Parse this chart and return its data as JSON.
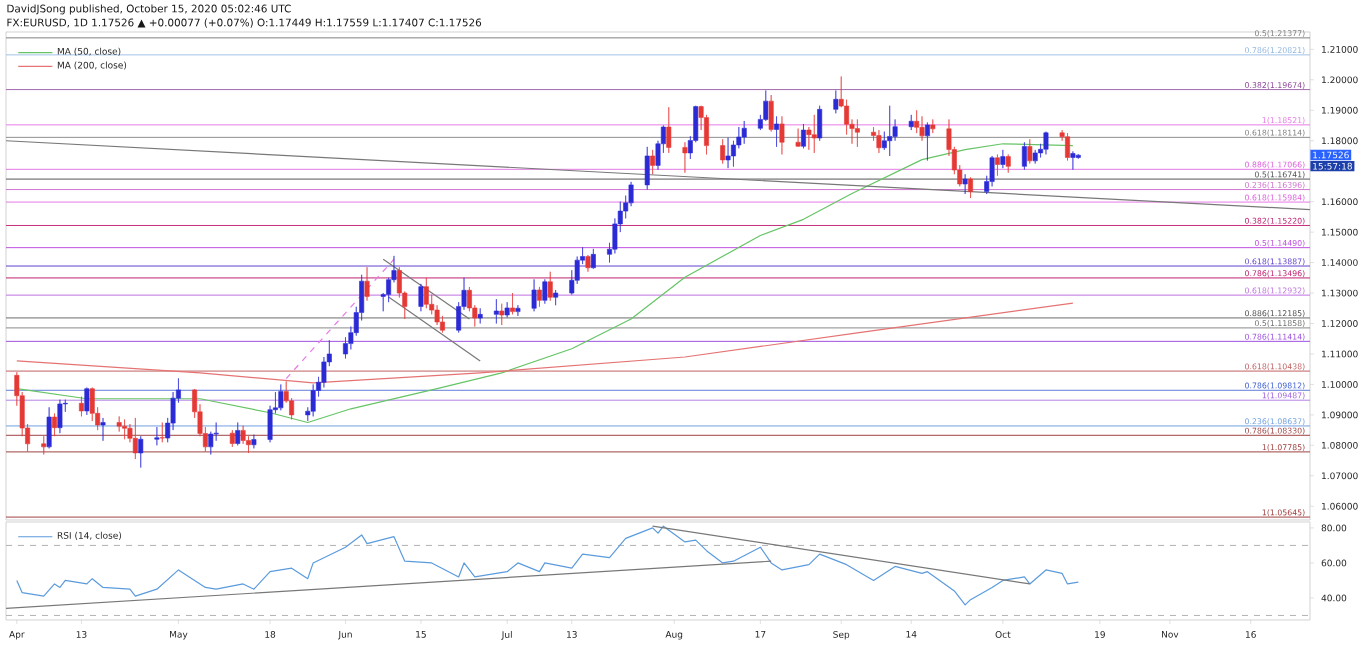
{
  "chart_data": [
    {
      "type": "candlestick",
      "title": "DavidJSong published, October 15, 2020 05:02:46 UTC",
      "subtitle": "FX:EURUSD, 1D 1.17526 ▲ +0.00077 (+0.07%) O:1.17449 H:1.17559 L:1.17407 C:1.17526",
      "x": [
        "2020-04-01",
        "2020-04-02",
        "2020-04-03",
        "2020-04-06",
        "2020-04-07",
        "2020-04-08",
        "2020-04-09",
        "2020-04-10",
        "2020-04-13",
        "2020-04-14",
        "2020-04-15",
        "2020-04-16",
        "2020-04-17",
        "2020-04-20",
        "2020-04-21",
        "2020-04-22",
        "2020-04-23",
        "2020-04-24",
        "2020-04-27",
        "2020-04-28",
        "2020-04-29",
        "2020-04-30",
        "2020-05-01",
        "2020-05-04",
        "2020-05-05",
        "2020-05-06",
        "2020-05-07",
        "2020-05-08",
        "2020-05-11",
        "2020-05-12",
        "2020-05-13",
        "2020-05-14",
        "2020-05-15",
        "2020-05-18",
        "2020-05-19",
        "2020-05-20",
        "2020-05-21",
        "2020-05-22",
        "2020-05-25",
        "2020-05-26",
        "2020-05-27",
        "2020-05-28",
        "2020-05-29",
        "2020-06-01",
        "2020-06-02",
        "2020-06-03",
        "2020-06-04",
        "2020-06-05",
        "2020-06-08",
        "2020-06-09",
        "2020-06-10",
        "2020-06-11",
        "2020-06-12",
        "2020-06-15",
        "2020-06-16",
        "2020-06-17",
        "2020-06-18",
        "2020-06-19",
        "2020-06-22",
        "2020-06-23",
        "2020-06-24",
        "2020-06-25",
        "2020-06-26",
        "2020-06-29",
        "2020-06-30",
        "2020-07-01",
        "2020-07-02",
        "2020-07-03",
        "2020-07-06",
        "2020-07-07",
        "2020-07-08",
        "2020-07-09",
        "2020-07-10",
        "2020-07-13",
        "2020-07-14",
        "2020-07-15",
        "2020-07-16",
        "2020-07-17",
        "2020-07-20",
        "2020-07-21",
        "2020-07-22",
        "2020-07-23",
        "2020-07-24",
        "2020-07-27",
        "2020-07-28",
        "2020-07-29",
        "2020-07-30",
        "2020-07-31",
        "2020-08-03",
        "2020-08-04",
        "2020-08-05",
        "2020-08-06",
        "2020-08-07",
        "2020-08-10",
        "2020-08-11",
        "2020-08-12",
        "2020-08-13",
        "2020-08-14",
        "2020-08-17",
        "2020-08-18",
        "2020-08-19",
        "2020-08-20",
        "2020-08-21",
        "2020-08-24",
        "2020-08-25",
        "2020-08-26",
        "2020-08-27",
        "2020-08-28",
        "2020-08-31",
        "2020-09-01",
        "2020-09-02",
        "2020-09-03",
        "2020-09-04",
        "2020-09-07",
        "2020-09-08",
        "2020-09-09",
        "2020-09-10",
        "2020-09-11",
        "2020-09-14",
        "2020-09-15",
        "2020-09-16",
        "2020-09-17",
        "2020-09-18",
        "2020-09-21",
        "2020-09-22",
        "2020-09-23",
        "2020-09-24",
        "2020-09-25",
        "2020-09-28",
        "2020-09-29",
        "2020-09-30",
        "2020-10-01",
        "2020-10-02",
        "2020-10-05",
        "2020-10-06",
        "2020-10-07",
        "2020-10-08",
        "2020-10-09",
        "2020-10-12",
        "2020-10-13",
        "2020-10-14",
        "2020-10-15"
      ],
      "ohlc": [
        [
          1.103,
          1.104,
          1.093,
          1.0963
        ],
        [
          1.0963,
          1.0975,
          1.083,
          1.0857
        ],
        [
          1.0857,
          1.087,
          1.078,
          1.0805
        ],
        [
          1.0805,
          1.083,
          1.077,
          1.0795
        ],
        [
          1.0795,
          1.0925,
          1.079,
          1.0893
        ],
        [
          1.0893,
          1.0905,
          1.083,
          1.0858
        ],
        [
          1.0858,
          1.095,
          1.084,
          1.0936
        ],
        [
          1.0936,
          1.095,
          1.091,
          1.0938
        ],
        [
          1.0938,
          1.096,
          1.0895,
          1.0913
        ],
        [
          1.0913,
          1.099,
          1.09,
          1.0986
        ],
        [
          1.0986,
          1.099,
          1.088,
          1.0905
        ],
        [
          1.0905,
          1.0925,
          1.085,
          1.0867
        ],
        [
          1.0867,
          1.089,
          1.0815,
          1.0875
        ],
        [
          1.0875,
          1.0895,
          1.0845,
          1.0863
        ],
        [
          1.0863,
          1.0885,
          1.082,
          1.0856
        ],
        [
          1.0856,
          1.087,
          1.081,
          1.0823
        ],
        [
          1.0823,
          1.089,
          1.0755,
          1.0775
        ],
        [
          1.0775,
          1.083,
          1.0727,
          1.082
        ],
        [
          1.082,
          1.086,
          1.08,
          1.0825
        ],
        [
          1.0825,
          1.0875,
          1.081,
          1.0824
        ],
        [
          1.0824,
          1.089,
          1.081,
          1.0873
        ],
        [
          1.0873,
          1.0975,
          1.085,
          1.0955
        ],
        [
          1.0955,
          1.102,
          1.094,
          1.0982
        ],
        [
          1.0982,
          1.0985,
          1.089,
          1.091
        ],
        [
          1.091,
          1.0935,
          1.083,
          1.0839
        ],
        [
          1.0839,
          1.086,
          1.078,
          1.0795
        ],
        [
          1.0795,
          1.0845,
          1.077,
          1.0837
        ],
        [
          1.0837,
          1.0875,
          1.0815,
          1.084
        ],
        [
          1.084,
          1.085,
          1.0795,
          1.0806
        ],
        [
          1.0806,
          1.0875,
          1.08,
          1.0849
        ],
        [
          1.0849,
          1.0865,
          1.0805,
          1.0816
        ],
        [
          1.0816,
          1.083,
          1.0775,
          1.0802
        ],
        [
          1.0802,
          1.0835,
          1.079,
          1.0819
        ],
        [
          1.0819,
          1.093,
          1.081,
          1.0917
        ],
        [
          1.0917,
          1.0975,
          1.0905,
          1.0923
        ],
        [
          1.0923,
          1.1,
          1.0915,
          1.0977
        ],
        [
          1.0977,
          1.101,
          1.094,
          1.0946
        ],
        [
          1.0946,
          1.0955,
          1.0885,
          1.09
        ],
        [
          1.09,
          1.0925,
          1.088,
          1.0912
        ],
        [
          1.0912,
          1.1,
          1.0895,
          1.098
        ],
        [
          1.098,
          1.1025,
          1.096,
          1.1007
        ],
        [
          1.1007,
          1.109,
          1.099,
          1.1074
        ],
        [
          1.1074,
          1.1145,
          1.106,
          1.11
        ],
        [
          1.11,
          1.1155,
          1.1085,
          1.1134
        ],
        [
          1.1134,
          1.119,
          1.1115,
          1.117
        ],
        [
          1.117,
          1.1255,
          1.116,
          1.1236
        ],
        [
          1.1236,
          1.136,
          1.121,
          1.1339
        ],
        [
          1.1339,
          1.1385,
          1.1275,
          1.1289
        ],
        [
          1.1289,
          1.13,
          1.124,
          1.1295
        ],
        [
          1.1295,
          1.135,
          1.127,
          1.1344
        ],
        [
          1.1344,
          1.1422,
          1.1335,
          1.1374
        ],
        [
          1.1374,
          1.1385,
          1.1285,
          1.13
        ],
        [
          1.13,
          1.1305,
          1.1215,
          1.1256
        ],
        [
          1.1256,
          1.133,
          1.124,
          1.1321
        ],
        [
          1.1321,
          1.135,
          1.125,
          1.1263
        ],
        [
          1.1263,
          1.1295,
          1.123,
          1.1244
        ],
        [
          1.1244,
          1.126,
          1.1195,
          1.1205
        ],
        [
          1.1205,
          1.1225,
          1.117,
          1.1178
        ],
        [
          1.1178,
          1.127,
          1.117,
          1.1256
        ],
        [
          1.1256,
          1.135,
          1.1245,
          1.1309
        ],
        [
          1.1309,
          1.132,
          1.124,
          1.1251
        ],
        [
          1.1251,
          1.126,
          1.119,
          1.1218
        ],
        [
          1.1218,
          1.125,
          1.12,
          1.123
        ],
        [
          1.123,
          1.128,
          1.12,
          1.1241
        ],
        [
          1.1241,
          1.1265,
          1.1195,
          1.1228
        ],
        [
          1.1228,
          1.127,
          1.122,
          1.1251
        ],
        [
          1.1251,
          1.13,
          1.123,
          1.1239
        ],
        [
          1.1239,
          1.126,
          1.1225,
          1.125
        ],
        [
          1.125,
          1.1345,
          1.124,
          1.131
        ],
        [
          1.131,
          1.132,
          1.1255,
          1.1276
        ],
        [
          1.1276,
          1.1345,
          1.1265,
          1.1337
        ],
        [
          1.1337,
          1.137,
          1.1275,
          1.1286
        ],
        [
          1.1286,
          1.131,
          1.126,
          1.13
        ],
        [
          1.13,
          1.1375,
          1.1295,
          1.1342
        ],
        [
          1.1342,
          1.142,
          1.133,
          1.1408
        ],
        [
          1.1408,
          1.145,
          1.1395,
          1.142
        ],
        [
          1.142,
          1.1425,
          1.137,
          1.1383
        ],
        [
          1.1383,
          1.1445,
          1.138,
          1.1427
        ],
        [
          1.1427,
          1.1465,
          1.14,
          1.1444
        ],
        [
          1.1444,
          1.1545,
          1.143,
          1.1527
        ],
        [
          1.1527,
          1.16,
          1.15,
          1.1569
        ],
        [
          1.1569,
          1.162,
          1.1545,
          1.1596
        ],
        [
          1.1596,
          1.1665,
          1.1585,
          1.1655
        ],
        [
          1.1655,
          1.178,
          1.164,
          1.175
        ],
        [
          1.175,
          1.177,
          1.169,
          1.1719
        ],
        [
          1.1719,
          1.18,
          1.1705,
          1.179
        ],
        [
          1.179,
          1.185,
          1.176,
          1.1845
        ],
        [
          1.1845,
          1.191,
          1.176,
          1.1778
        ],
        [
          1.1778,
          1.1795,
          1.1695,
          1.176
        ],
        [
          1.176,
          1.1815,
          1.174,
          1.1801
        ],
        [
          1.1801,
          1.1915,
          1.1795,
          1.1912
        ],
        [
          1.1912,
          1.1915,
          1.1835,
          1.1876
        ],
        [
          1.1876,
          1.1885,
          1.1755,
          1.1784
        ],
        [
          1.1784,
          1.1805,
          1.1725,
          1.1737
        ],
        [
          1.1737,
          1.181,
          1.171,
          1.175
        ],
        [
          1.175,
          1.18,
          1.1715,
          1.1786
        ],
        [
          1.1786,
          1.1845,
          1.1775,
          1.1812
        ],
        [
          1.1812,
          1.1865,
          1.179,
          1.1841
        ],
        [
          1.1841,
          1.1885,
          1.1835,
          1.187
        ],
        [
          1.187,
          1.1965,
          1.1865,
          1.193
        ],
        [
          1.193,
          1.195,
          1.183,
          1.1837
        ],
        [
          1.1837,
          1.188,
          1.178,
          1.1855
        ],
        [
          1.1855,
          1.188,
          1.1755,
          1.1795
        ],
        [
          1.1795,
          1.184,
          1.178,
          1.1782
        ],
        [
          1.1782,
          1.1855,
          1.1775,
          1.1835
        ],
        [
          1.1835,
          1.1845,
          1.177,
          1.182
        ],
        [
          1.182,
          1.1885,
          1.176,
          1.1809
        ],
        [
          1.1809,
          1.1915,
          1.18,
          1.1903
        ],
        [
          1.1903,
          1.1965,
          1.189,
          1.1936
        ],
        [
          1.1936,
          1.2011,
          1.191,
          1.1914
        ],
        [
          1.1914,
          1.1935,
          1.182,
          1.1854
        ],
        [
          1.1854,
          1.187,
          1.179,
          1.184
        ],
        [
          1.184,
          1.187,
          1.178,
          1.1828
        ],
        [
          1.1828,
          1.1845,
          1.18,
          1.1817
        ],
        [
          1.1817,
          1.1835,
          1.176,
          1.1777
        ],
        [
          1.1777,
          1.183,
          1.177,
          1.18
        ],
        [
          1.18,
          1.1915,
          1.175,
          1.1814
        ],
        [
          1.1814,
          1.187,
          1.18,
          1.1846
        ],
        [
          1.1846,
          1.1885,
          1.1835,
          1.1864
        ],
        [
          1.1864,
          1.19,
          1.1825,
          1.1844
        ],
        [
          1.1844,
          1.188,
          1.18,
          1.1816
        ],
        [
          1.1816,
          1.186,
          1.1735,
          1.1852
        ],
        [
          1.1852,
          1.187,
          1.1825,
          1.1839
        ],
        [
          1.1839,
          1.187,
          1.175,
          1.1771
        ],
        [
          1.1771,
          1.178,
          1.169,
          1.1704
        ],
        [
          1.1704,
          1.172,
          1.165,
          1.1658
        ],
        [
          1.1658,
          1.169,
          1.1625,
          1.1674
        ],
        [
          1.1674,
          1.168,
          1.1612,
          1.1633
        ],
        [
          1.1633,
          1.1685,
          1.1625,
          1.1666
        ],
        [
          1.1666,
          1.175,
          1.165,
          1.1744
        ],
        [
          1.1744,
          1.1755,
          1.1685,
          1.1722
        ],
        [
          1.1722,
          1.177,
          1.171,
          1.1748
        ],
        [
          1.1748,
          1.1755,
          1.1695,
          1.1716
        ],
        [
          1.1716,
          1.1795,
          1.1705,
          1.1781
        ],
        [
          1.1781,
          1.1805,
          1.1725,
          1.1734
        ],
        [
          1.1734,
          1.177,
          1.1725,
          1.176
        ],
        [
          1.176,
          1.179,
          1.1745,
          1.1772
        ],
        [
          1.1772,
          1.183,
          1.1755,
          1.1826
        ],
        [
          1.1826,
          1.1835,
          1.18,
          1.1813
        ],
        [
          1.1813,
          1.1825,
          1.1735,
          1.1745
        ],
        [
          1.1745,
          1.1765,
          1.1705,
          1.1758
        ],
        [
          1.17449,
          1.17559,
          1.17407,
          1.17526
        ]
      ],
      "series": [
        {
          "name": "MA (50, close)",
          "type": "line",
          "color": "#66c466",
          "x": [
            "2020-04-01",
            "2020-04-14",
            "2020-05-05",
            "2020-05-18",
            "2020-05-25",
            "2020-06-02",
            "2020-06-18",
            "2020-06-30",
            "2020-07-13",
            "2020-07-24",
            "2020-08-03",
            "2020-08-17",
            "2020-08-25",
            "2020-09-03",
            "2020-09-16",
            "2020-09-24",
            "2020-10-01",
            "2020-10-14"
          ],
          "values": [
            1.0986,
            1.0953,
            1.0953,
            1.0907,
            1.0875,
            1.092,
            1.0986,
            1.1038,
            1.1117,
            1.1215,
            1.1352,
            1.1489,
            1.1542,
            1.1627,
            1.1738,
            1.1771,
            1.179,
            1.1784
          ]
        },
        {
          "name": "MA (200, close)",
          "type": "line",
          "color": "#e57373",
          "x": [
            "2020-04-01",
            "2020-05-05",
            "2020-05-26",
            "2020-06-26",
            "2020-08-03",
            "2020-09-04",
            "2020-10-14"
          ],
          "values": [
            1.1077,
            1.1038,
            1.1005,
            1.1038,
            1.109,
            1.1169,
            1.1267
          ]
        },
        {
          "type": "line",
          "color": "#787878",
          "x": [
            "2020-03-30",
            "2020-11-27"
          ],
          "values": [
            1.18,
            1.1574
          ]
        },
        {
          "type": "line",
          "color": "#787878",
          "x": [
            "2020-06-08",
            "2020-06-24"
          ],
          "values": [
            1.1411,
            1.1215
          ]
        },
        {
          "type": "line",
          "color": "#787878",
          "x": [
            "2020-06-09",
            "2020-06-26"
          ],
          "values": [
            1.1287,
            1.1077
          ]
        },
        {
          "type": "line",
          "color": "#e879e8",
          "line_style": "dashed",
          "x": [
            "2020-05-21",
            "2020-06-10"
          ],
          "values": [
            1.1019,
            1.1411
          ]
        }
      ],
      "xlim": [
        "2020-03-30",
        "2020-11-27"
      ],
      "ylim": [
        1.0555,
        1.2157
      ],
      "yticks": [
        {
          "value": 1.06,
          "label": "1.06000"
        },
        {
          "value": 1.07,
          "label": "1.07000"
        },
        {
          "value": 1.08,
          "label": "1.08000"
        },
        {
          "value": 1.09,
          "label": "1.09000"
        },
        {
          "value": 1.1,
          "label": "1.10000"
        },
        {
          "value": 1.11,
          "label": "1.11000"
        },
        {
          "value": 1.12,
          "label": "1.12000"
        },
        {
          "value": 1.13,
          "label": "1.13000"
        },
        {
          "value": 1.14,
          "label": "1.14000"
        },
        {
          "value": 1.15,
          "label": "1.15000"
        },
        {
          "value": 1.16,
          "label": "1.16000"
        },
        {
          "value": 1.18,
          "label": "1.18000"
        },
        {
          "value": 1.19,
          "label": "1.19000"
        },
        {
          "value": 1.2,
          "label": "1.20000"
        },
        {
          "value": 1.21,
          "label": "1.21000"
        }
      ],
      "tick_labels": "y",
      "legend": "top left",
      "ref_lines": [
        {
          "axis": "y",
          "value": 1.21377,
          "label": "0.5(1.21377)",
          "color": "#808080"
        },
        {
          "axis": "y",
          "value": 1.20821,
          "label": "0.786(1.20821)",
          "color": "#8fb6e0"
        },
        {
          "axis": "y",
          "value": 1.19674,
          "label": "0.382(1.19674)",
          "color": "#8e4a9a"
        },
        {
          "axis": "y",
          "value": 1.18521,
          "label": "1(1.18521)",
          "color": "#e879e8"
        },
        {
          "axis": "y",
          "value": 1.18114,
          "label": "0.618(1.18114)",
          "color": "#808080"
        },
        {
          "axis": "y",
          "value": 1.17066,
          "label": "0.886(1.17066)",
          "color": "#e060e0"
        },
        {
          "axis": "y",
          "value": 1.16741,
          "label": "0.5(1.16741)",
          "color": "#555555"
        },
        {
          "axis": "y",
          "value": 1.16396,
          "label": "0.236(1.16396)",
          "color": "#d070d0"
        },
        {
          "axis": "y",
          "value": 1.15984,
          "label": "0.618(1.15984)",
          "color": "#e060e0"
        },
        {
          "axis": "y",
          "value": 1.1522,
          "label": "0.382(1.15220)",
          "color": "#c02070"
        },
        {
          "axis": "y",
          "value": 1.1449,
          "label": "0.5(1.14490)",
          "color": "#c050e0"
        },
        {
          "axis": "y",
          "value": 1.13887,
          "label": "0.618(1.13887)",
          "color": "#6040d0"
        },
        {
          "axis": "y",
          "value": 1.13496,
          "label": "0.786(1.13496)",
          "color": "#c02070"
        },
        {
          "axis": "y",
          "value": 1.12932,
          "label": "0.618(1.12932)",
          "color": "#c070e0"
        },
        {
          "axis": "y",
          "value": 1.12185,
          "label": "0.886(1.12185)",
          "color": "#505050"
        },
        {
          "axis": "y",
          "value": 1.11858,
          "label": "0.5(1.11858)",
          "color": "#707070"
        },
        {
          "axis": "y",
          "value": 1.11414,
          "label": "0.786(1.11414)",
          "color": "#a050e0"
        },
        {
          "axis": "y",
          "value": 1.10438,
          "label": "0.618(1.10438)",
          "color": "#c06060"
        },
        {
          "axis": "y",
          "value": 1.09812,
          "label": "0.786(1.09812)",
          "color": "#4060d0"
        },
        {
          "axis": "y",
          "value": 1.09487,
          "label": "1(1.09487)",
          "color": "#a060e0"
        },
        {
          "axis": "y",
          "value": 1.08637,
          "label": "0.236(1.08637)",
          "color": "#70a0e0"
        },
        {
          "axis": "y",
          "value": 1.0833,
          "label": "0.786(1.08330)",
          "color": "#a04040"
        },
        {
          "axis": "y",
          "value": 1.07785,
          "label": "1(1.07785)",
          "color": "#a04040"
        },
        {
          "axis": "y",
          "value": 1.05645,
          "label": "1(1.05645)",
          "color": "#a04040"
        }
      ],
      "annotations": [
        "1.17526",
        "15:57:18"
      ]
    },
    {
      "type": "line",
      "series": [
        {
          "name": "RSI (14, close)",
          "color": "#5b9bdc",
          "x": [
            "2020-04-01",
            "2020-04-02",
            "2020-04-06",
            "2020-04-08",
            "2020-04-09",
            "2020-04-10",
            "2020-04-14",
            "2020-04-15",
            "2020-04-17",
            "2020-04-22",
            "2020-04-23",
            "2020-04-27",
            "2020-05-01",
            "2020-05-06",
            "2020-05-08",
            "2020-05-13",
            "2020-05-15",
            "2020-05-18",
            "2020-05-22",
            "2020-05-25",
            "2020-05-26",
            "2020-06-01",
            "2020-06-04",
            "2020-06-05",
            "2020-06-10",
            "2020-06-12",
            "2020-06-17",
            "2020-06-22",
            "2020-06-23",
            "2020-06-25",
            "2020-07-01",
            "2020-07-03",
            "2020-07-07",
            "2020-07-08",
            "2020-07-13",
            "2020-07-15",
            "2020-07-20",
            "2020-07-23",
            "2020-07-28",
            "2020-07-29",
            "2020-07-30",
            "2020-08-03",
            "2020-08-05",
            "2020-08-07",
            "2020-08-10",
            "2020-08-12",
            "2020-08-17",
            "2020-08-19",
            "2020-08-21",
            "2020-08-26",
            "2020-08-28",
            "2020-09-02",
            "2020-09-07",
            "2020-09-09",
            "2020-09-11",
            "2020-09-16",
            "2020-09-17",
            "2020-09-22",
            "2020-09-24",
            "2020-09-25",
            "2020-09-29",
            "2020-10-01",
            "2020-10-05",
            "2020-10-06",
            "2020-10-09",
            "2020-10-12",
            "2020-10-13",
            "2020-10-15"
          ],
          "values": [
            50,
            43,
            41,
            48,
            46,
            50,
            48,
            51,
            46,
            45,
            41,
            45,
            56,
            46,
            45,
            48,
            45,
            55,
            57,
            51,
            60,
            69,
            76,
            71,
            75,
            61,
            60,
            52,
            60,
            52,
            55,
            60,
            55,
            60,
            57,
            65,
            63,
            74,
            80,
            77,
            81,
            72,
            73,
            67,
            60,
            61,
            69,
            60,
            56,
            59,
            65,
            59,
            50,
            54,
            58,
            54,
            55,
            44,
            36,
            39,
            46,
            50,
            52,
            48,
            56,
            54,
            48,
            49
          ]
        },
        {
          "color": "#787878",
          "x": [
            "2020-03-30",
            "2020-08-19"
          ],
          "values": [
            34,
            61
          ]
        },
        {
          "color": "#787878",
          "x": [
            "2020-07-28",
            "2020-10-06"
          ],
          "values": [
            81,
            48
          ]
        }
      ],
      "xlim": [
        "2020-03-30",
        "2020-11-27"
      ],
      "xticks": [
        {
          "value": "2020-04-01",
          "label": "Apr"
        },
        {
          "value": "2020-04-13",
          "label": "13"
        },
        {
          "value": "2020-05-01",
          "label": "May"
        },
        {
          "value": "2020-05-18",
          "label": "18"
        },
        {
          "value": "2020-06-01",
          "label": "Jun"
        },
        {
          "value": "2020-06-15",
          "label": "15"
        },
        {
          "value": "2020-07-01",
          "label": "Jul"
        },
        {
          "value": "2020-07-13",
          "label": "13"
        },
        {
          "value": "2020-08-01",
          "label": "Aug"
        },
        {
          "value": "2020-08-17",
          "label": "17"
        },
        {
          "value": "2020-09-01",
          "label": "Sep"
        },
        {
          "value": "2020-09-14",
          "label": "14"
        },
        {
          "value": "2020-10-01",
          "label": "Oct"
        },
        {
          "value": "2020-10-19",
          "label": "19"
        },
        {
          "value": "2020-11-01",
          "label": "Nov"
        },
        {
          "value": "2020-11-16",
          "label": "16"
        }
      ],
      "ylim": [
        27.4,
        83.4
      ],
      "yticks": [
        {
          "value": 40,
          "label": "40.00"
        },
        {
          "value": 60,
          "label": "60.00"
        },
        {
          "value": 80,
          "label": "80.00"
        }
      ],
      "legend": "top left",
      "ref_lines": [
        {
          "axis": "y",
          "value": 70,
          "color": "#b0b0b0",
          "line_style": "dashed"
        },
        {
          "axis": "y",
          "value": 30,
          "color": "#b0b0b0",
          "line_style": "dashed"
        }
      ]
    }
  ]
}
